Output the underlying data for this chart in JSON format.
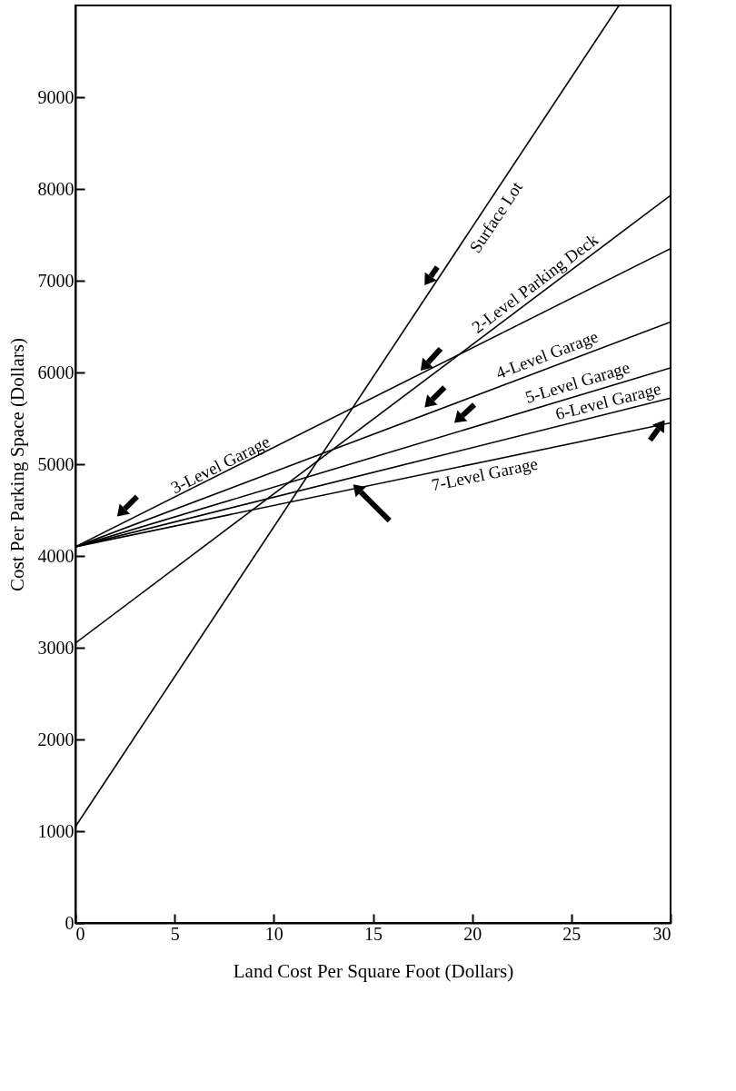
{
  "chart_data": {
    "type": "line",
    "xlabel": "Land Cost Per Square Foot (Dollars)",
    "ylabel": "Cost Per Parking Space (Dollars)",
    "xlim": [
      0,
      30
    ],
    "xticks": [
      0,
      5,
      10,
      15,
      20,
      25,
      30
    ],
    "ylim": [
      0,
      10000
    ],
    "yticks": [
      0,
      1000,
      2000,
      3000,
      4000,
      5000,
      6000,
      7000,
      8000,
      9000
    ],
    "grid": false,
    "marker": "none",
    "line_style": "solid",
    "series": [
      {
        "name": "Surface Lot",
        "color": "#000000",
        "x": [
          0,
          27.4
        ],
        "values": [
          1050,
          10000
        ]
      },
      {
        "name": "2-Level Parking Deck",
        "color": "#000000",
        "x": [
          0,
          30
        ],
        "values": [
          3050,
          7930
        ]
      },
      {
        "name": "3-Level Garage",
        "color": "#000000",
        "x": [
          0,
          30
        ],
        "values": [
          4100,
          7350
        ]
      },
      {
        "name": "4-Level Garage",
        "color": "#000000",
        "x": [
          0,
          30
        ],
        "values": [
          4100,
          6550
        ]
      },
      {
        "name": "5-Level Garage",
        "color": "#000000",
        "x": [
          0,
          30
        ],
        "values": [
          4100,
          6050
        ]
      },
      {
        "name": "6-Level Garage",
        "color": "#000000",
        "x": [
          0,
          30
        ],
        "values": [
          4100,
          5720
        ]
      },
      {
        "name": "7-Level Garage",
        "color": "#000000",
        "x": [
          0,
          30
        ],
        "values": [
          4100,
          5450
        ]
      }
    ]
  }
}
